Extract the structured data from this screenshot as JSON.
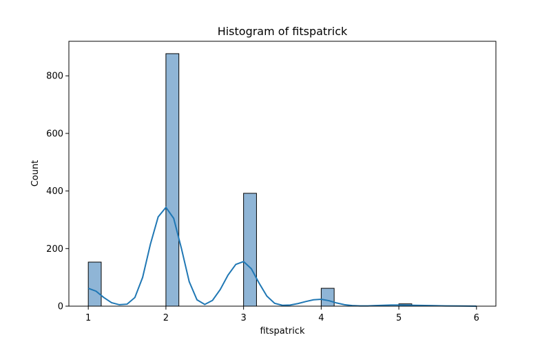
{
  "chart_data": {
    "type": "bar",
    "title": "Histogram of fitspatrick",
    "xlabel": "fitspatrick",
    "ylabel": "Count",
    "xlim": [
      0.75,
      6.25
    ],
    "ylim": [
      0,
      920
    ],
    "xticks": [
      1,
      2,
      3,
      4,
      5,
      6
    ],
    "yticks": [
      0,
      200,
      400,
      600,
      800
    ],
    "bin_width": 0.1667,
    "bins": [
      {
        "x0": 1.0,
        "x1": 1.1667,
        "count": 153
      },
      {
        "x0": 2.0,
        "x1": 2.1667,
        "count": 877
      },
      {
        "x0": 3.0,
        "x1": 3.1667,
        "count": 392
      },
      {
        "x0": 4.0,
        "x1": 4.1667,
        "count": 62
      },
      {
        "x0": 5.0,
        "x1": 5.1667,
        "count": 8
      }
    ],
    "kde": {
      "x": [
        1.0,
        1.1,
        1.2,
        1.3,
        1.4,
        1.5,
        1.6,
        1.7,
        1.8,
        1.9,
        2.0,
        2.1,
        2.2,
        2.3,
        2.4,
        2.5,
        2.6,
        2.7,
        2.8,
        2.9,
        3.0,
        3.1,
        3.2,
        3.3,
        3.4,
        3.5,
        3.6,
        3.7,
        3.8,
        3.9,
        4.0,
        4.1,
        4.2,
        4.3,
        4.4,
        4.5,
        4.6,
        4.7,
        4.8,
        4.9,
        5.0,
        5.2,
        5.4,
        5.6,
        5.8,
        6.0
      ],
      "y": [
        62,
        52,
        30,
        12,
        5,
        7,
        30,
        100,
        215,
        310,
        343,
        305,
        200,
        85,
        22,
        6,
        20,
        58,
        108,
        145,
        155,
        130,
        80,
        35,
        10,
        3,
        4,
        9,
        16,
        22,
        24,
        19,
        11,
        5,
        2,
        1,
        1,
        2,
        3,
        4,
        4,
        3,
        2,
        1,
        0.5,
        0
      ]
    },
    "bar_color": "#8fb5d6",
    "bar_edge": "#000000",
    "line_color": "#1f77b4",
    "grid": false
  }
}
